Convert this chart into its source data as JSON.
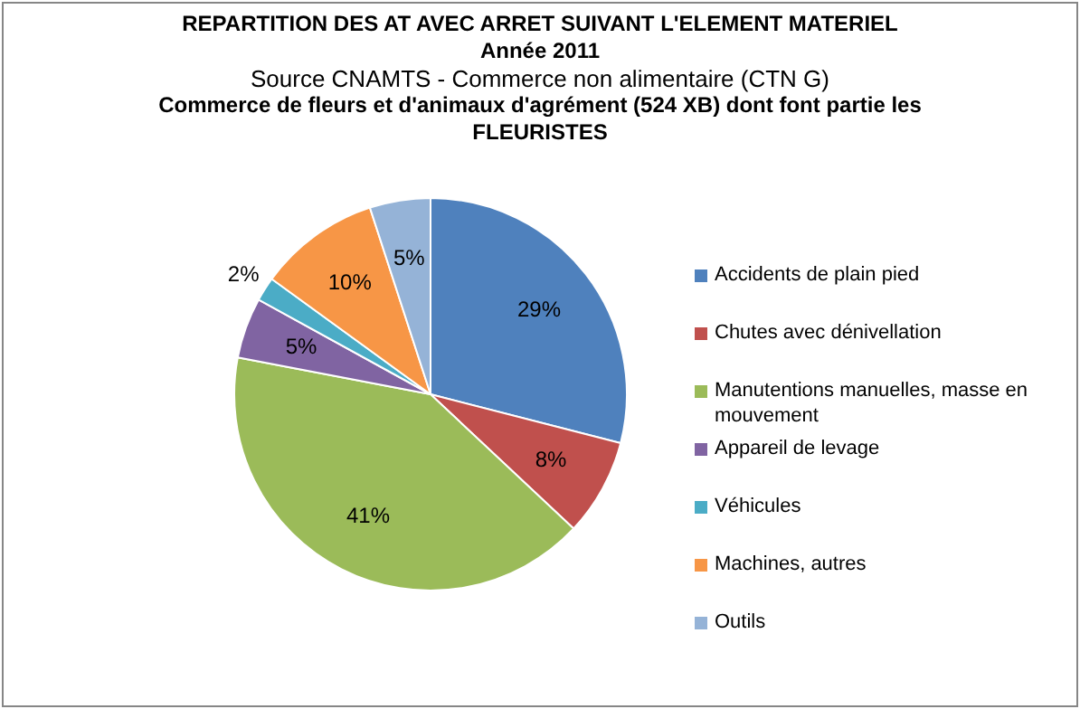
{
  "chart_data": {
    "type": "pie",
    "title": "REPARTITION DES AT AVEC ARRET SUIVANT L'ELEMENT MATERIEL\nAnnée 2011",
    "subtitle": "Source CNAMTS -  Commerce non alimentaire (CTN G)",
    "annotations": [
      "Commerce de fleurs et d'animaux  d'agrément (524 XB) dont font partie les FLEURISTES"
    ],
    "categories": [
      "Accidents de plain pied",
      "Chutes avec dénivellation",
      "Manutentions manuelles, masse en mouvement",
      "Appareil de levage",
      "Véhicules",
      "Machines, autres",
      "Outils"
    ],
    "values": [
      29,
      8,
      41,
      5,
      2,
      10,
      5
    ],
    "colors": [
      "#4f81bd",
      "#c0504d",
      "#9bbb59",
      "#8064a2",
      "#4bacc6",
      "#f79646",
      "#95b3d7"
    ],
    "value_labels": [
      "29%",
      "8%",
      "41%",
      "5%",
      "2%",
      "10%",
      "5%"
    ],
    "legend": "right"
  }
}
